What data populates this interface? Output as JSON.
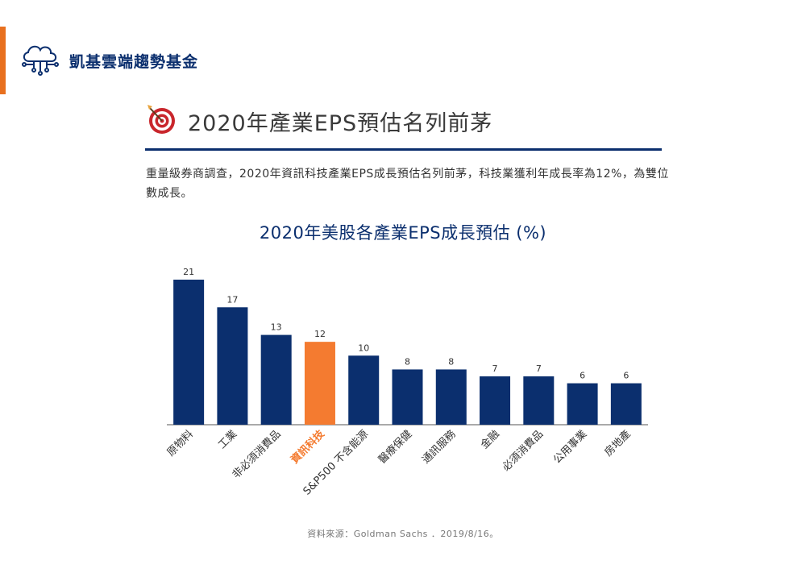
{
  "brand": {
    "name": "凱基雲端趨勢基金",
    "icon": "cloud-circuit-icon"
  },
  "section": {
    "title": "2020年產業EPS預估名列前茅",
    "icon": "target-dart-icon"
  },
  "description": "重量級券商調查，2020年資訊科技產業EPS成長預估名列前茅，科技業獲利年成長率為12%，為雙位數成長。",
  "chart_data": {
    "type": "bar",
    "title": "2020年美股各產業EPS成長預估 (%)",
    "categories": [
      "原物料",
      "工業",
      "非必須消費品",
      "資訊科技",
      "S&P500 不含能源",
      "醫療保健",
      "通訊服務",
      "金融",
      "必須消費品",
      "公用事業",
      "房地產"
    ],
    "values": [
      21,
      17,
      13,
      12,
      10,
      8,
      8,
      7,
      7,
      6,
      6
    ],
    "highlight_index": 3,
    "ylim": [
      0,
      21
    ],
    "grid": false,
    "xlabel": "",
    "ylabel": "",
    "colors": {
      "bar": "#0b2f6e",
      "highlight": "#f47b30",
      "axis": "#555555"
    }
  },
  "source": "資料來源：Goldman Sachs ．2019/8/16。",
  "colors": {
    "accent": "#e8701f",
    "brand": "#0b2f6e"
  }
}
